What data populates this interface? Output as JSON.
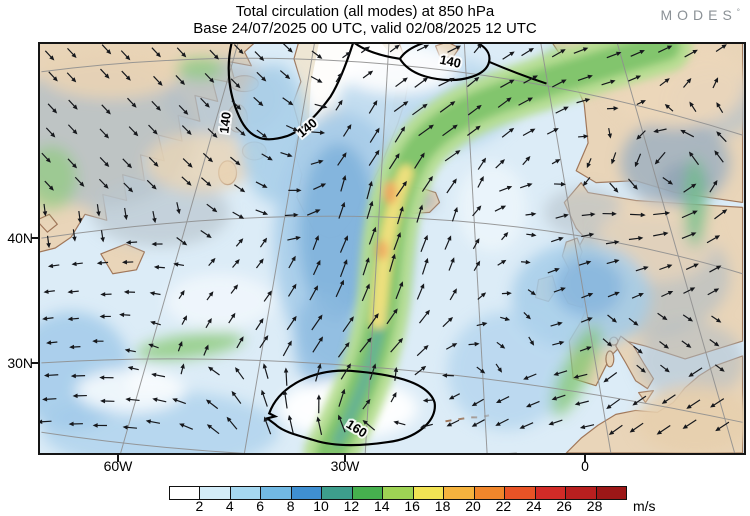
{
  "header": {
    "title_line1": "Total circulation (all modes) at 850 hPa",
    "title_line2": "Base 24/07/2025 00 UTC, valid 02/08/2025 12 UTC"
  },
  "logo": {
    "text": "MODES",
    "mark": "°",
    "color": "#8b9196"
  },
  "map": {
    "y_axis_labels": [
      "40N",
      "30N"
    ],
    "x_axis_labels": [
      "60W",
      "30W",
      "0"
    ],
    "contour_labels": [
      "140",
      "140",
      "140",
      "160"
    ],
    "colors": {
      "ocean": "#dcecf7",
      "land": "#e9d5b9",
      "land_gray": "#b3bfc7",
      "coastline": "#a0775a",
      "graticule": "#8f8f8f",
      "contour": "#000000",
      "jet_green": "#7fc46c",
      "jet_yellow": "#f2e27e",
      "arrow": "#16181c"
    }
  },
  "colorbar": {
    "units": "m/s",
    "ticks": [
      2,
      4,
      6,
      8,
      10,
      12,
      14,
      16,
      18,
      20,
      22,
      24,
      26,
      28
    ],
    "colors": [
      "#ffffff",
      "#d3ecf8",
      "#a6d8f0",
      "#72b9e3",
      "#3f8fd1",
      "#3d9e8c",
      "#46b04e",
      "#9ed354",
      "#f2e354",
      "#f5b33e",
      "#f0862b",
      "#e85326",
      "#d22b27",
      "#b81f1f",
      "#9c1717"
    ]
  }
}
